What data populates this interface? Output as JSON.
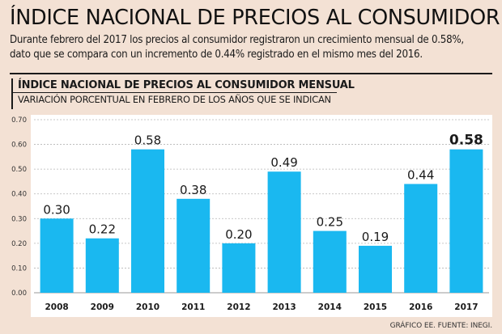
{
  "header": {
    "title": "ÍNDICE NACIONAL DE PRECIOS AL CONSUMIDOR",
    "subtitle_line1": "Durante febrero del 2017 los precios al consumidor registraron un crecimiento mensual de 0.58%,",
    "subtitle_line2": "dato que se compara con un incremento de 0.44% registrado en el mismo mes del 2016."
  },
  "chart_data": {
    "type": "bar",
    "title": "ÍNDICE NACIONAL DE PRECIOS AL CONSUMIDOR MENSUAL",
    "subtitle": "VARIACIÓN PORCENTUAL EN FEBRERO DE LOS AÑOS QUE SE INDICAN",
    "categories": [
      "2008",
      "2009",
      "2010",
      "2011",
      "2012",
      "2013",
      "2014",
      "2015",
      "2016",
      "2017"
    ],
    "values": [
      0.3,
      0.22,
      0.58,
      0.38,
      0.2,
      0.49,
      0.25,
      0.19,
      0.44,
      0.58
    ],
    "value_labels": [
      "0.30",
      "0.22",
      "0.58",
      "0.38",
      "0.20",
      "0.49",
      "0.25",
      "0.19",
      "0.44",
      "0.58"
    ],
    "highlight_index": 9,
    "yticks": [
      "0.00",
      "0.10",
      "0.20",
      "0.30",
      "0.40",
      "0.50",
      "0.60",
      "0.70"
    ],
    "ylim": [
      0,
      0.7
    ],
    "xlabel": "",
    "ylabel": "",
    "grid": true,
    "colors": {
      "bar": "#1ab8f0",
      "panel": "#ffffff",
      "grid": "#b5b5b5",
      "background": "#f3e1d4"
    }
  },
  "footer": {
    "source": "GRÁFICO EE. FUENTE: INEGI."
  }
}
